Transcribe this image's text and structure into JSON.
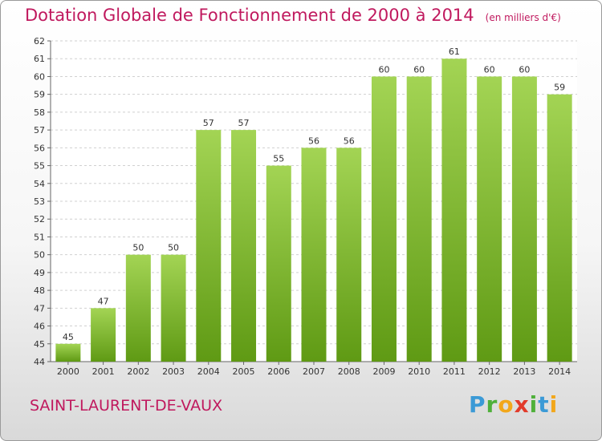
{
  "header": {
    "title": "Dotation Globale de Fonctionnement de 2000 à 2014",
    "unit": "(en milliers d'€)"
  },
  "footer": {
    "commune": "SAINT-LAURENT-DE-VAUX",
    "logo_text": "Proxiti"
  },
  "colors": {
    "title": "#c0195e",
    "bar_top": "#a3d454",
    "bar_bottom": "#5f9a14",
    "grid": "#d0d0d0"
  },
  "chart_data": {
    "type": "bar",
    "title": "Dotation Globale de Fonctionnement de 2000 à 2014",
    "xlabel": "",
    "ylabel": "",
    "categories": [
      "2000",
      "2001",
      "2002",
      "2003",
      "2004",
      "2005",
      "2006",
      "2007",
      "2008",
      "2009",
      "2010",
      "2011",
      "2012",
      "2013",
      "2014"
    ],
    "values": [
      45,
      47,
      50,
      50,
      57,
      57,
      55,
      56,
      56,
      60,
      60,
      61,
      60,
      60,
      59
    ],
    "ylim": [
      44,
      62
    ],
    "yticks": [
      44,
      45,
      46,
      47,
      48,
      49,
      50,
      51,
      52,
      53,
      54,
      55,
      56,
      57,
      58,
      59,
      60,
      61,
      62
    ],
    "grid": true,
    "legend": "none"
  }
}
